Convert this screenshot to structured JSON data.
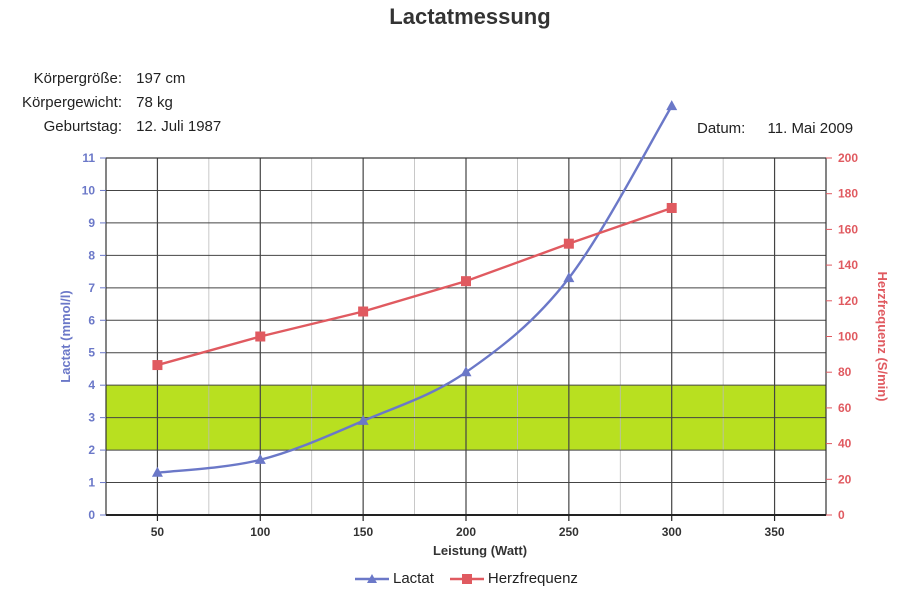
{
  "page": {
    "title": "Lactatmessung"
  },
  "info": {
    "height_label": "Körpergröße:",
    "height_value": "197 cm",
    "weight_label": "Körpergewicht:",
    "weight_value": "78 kg",
    "birthday_label": "Geburtstag:",
    "birthday_value": "12. Juli 1987",
    "date_label": "Datum:",
    "date_value": "11. Mai 2009"
  },
  "chart_data": {
    "type": "line",
    "xlabel": "Leistung (Watt)",
    "ylabel": "Lactat (mmol/l)",
    "y2label": "Herzfrequenz (S/min)",
    "xlim": [
      25,
      375
    ],
    "xticks": [
      50,
      100,
      150,
      200,
      250,
      300,
      350
    ],
    "ylim": [
      0,
      11
    ],
    "yticks": [
      0,
      1,
      2,
      3,
      4,
      5,
      6,
      7,
      8,
      9,
      10,
      11
    ],
    "y2lim": [
      0,
      200
    ],
    "y2ticks": [
      0,
      20,
      40,
      60,
      80,
      100,
      120,
      140,
      160,
      180,
      200
    ],
    "band": {
      "from": 2,
      "to": 4,
      "color": "#b8e020"
    },
    "grid": true,
    "legend_position": "bottom",
    "series": [
      {
        "name": "Lactat",
        "axis": "left",
        "color": "#6b78c8",
        "marker": "triangle",
        "x": [
          50,
          100,
          150,
          200,
          250,
          300
        ],
        "y": [
          1.3,
          1.7,
          2.9,
          4.4,
          7.3,
          12.6
        ]
      },
      {
        "name": "Herzfrequenz",
        "axis": "right",
        "color": "#e05a60",
        "marker": "square",
        "x": [
          50,
          100,
          150,
          200,
          250,
          300
        ],
        "y": [
          84,
          100,
          114,
          131,
          152,
          172
        ]
      }
    ]
  }
}
